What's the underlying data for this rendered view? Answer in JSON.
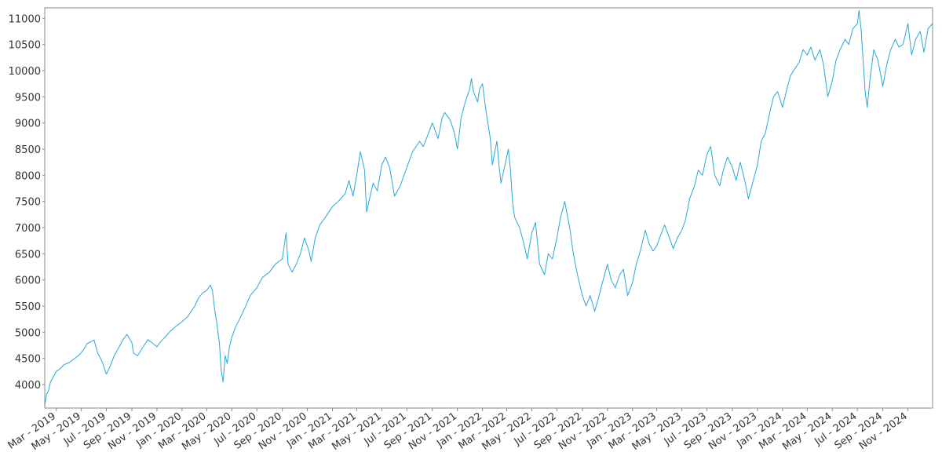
{
  "chart_data": {
    "type": "line",
    "title": "",
    "xlabel": "",
    "ylabel": "",
    "ylim": [
      3550,
      11200
    ],
    "xlim": [
      "2019-02-01",
      "2024-12-31"
    ],
    "grid": false,
    "line_color": "#29a8d9",
    "yticks": [
      4000,
      4500,
      5000,
      5500,
      6000,
      6500,
      7000,
      7500,
      8000,
      8500,
      9000,
      9500,
      10000,
      10500,
      11000
    ],
    "xticks": [
      {
        "date": "2019-03-01",
        "label": "Mar - 2019"
      },
      {
        "date": "2019-05-01",
        "label": "May - 2019"
      },
      {
        "date": "2019-07-01",
        "label": "Jul - 2019"
      },
      {
        "date": "2019-09-01",
        "label": "Sep - 2019"
      },
      {
        "date": "2019-11-01",
        "label": "Nov - 2019"
      },
      {
        "date": "2020-01-01",
        "label": "Jan - 2020"
      },
      {
        "date": "2020-03-01",
        "label": "Mar - 2020"
      },
      {
        "date": "2020-05-01",
        "label": "May - 2020"
      },
      {
        "date": "2020-07-01",
        "label": "Jul - 2020"
      },
      {
        "date": "2020-09-01",
        "label": "Sep - 2020"
      },
      {
        "date": "2020-11-01",
        "label": "Nov - 2020"
      },
      {
        "date": "2021-01-01",
        "label": "Jan - 2021"
      },
      {
        "date": "2021-03-01",
        "label": "Mar - 2021"
      },
      {
        "date": "2021-05-01",
        "label": "May - 2021"
      },
      {
        "date": "2021-07-01",
        "label": "Jul - 2021"
      },
      {
        "date": "2021-09-01",
        "label": "Sep - 2021"
      },
      {
        "date": "2021-11-01",
        "label": "Nov - 2021"
      },
      {
        "date": "2022-01-01",
        "label": "Jan - 2022"
      },
      {
        "date": "2022-03-01",
        "label": "Mar - 2022"
      },
      {
        "date": "2022-05-01",
        "label": "May - 2022"
      },
      {
        "date": "2022-07-01",
        "label": "Jul - 2022"
      },
      {
        "date": "2022-09-01",
        "label": "Sep - 2022"
      },
      {
        "date": "2022-11-01",
        "label": "Nov - 2022"
      },
      {
        "date": "2023-01-01",
        "label": "Jan - 2023"
      },
      {
        "date": "2023-03-01",
        "label": "Mar - 2023"
      },
      {
        "date": "2023-05-01",
        "label": "May - 2023"
      },
      {
        "date": "2023-07-01",
        "label": "Jul - 2023"
      },
      {
        "date": "2023-09-01",
        "label": "Sep - 2023"
      },
      {
        "date": "2023-11-01",
        "label": "Nov - 2023"
      },
      {
        "date": "2024-01-01",
        "label": "Jan - 2024"
      },
      {
        "date": "2024-03-01",
        "label": "Mar - 2024"
      },
      {
        "date": "2024-05-01",
        "label": "May - 2024"
      },
      {
        "date": "2024-07-01",
        "label": "Jul - 2024"
      },
      {
        "date": "2024-09-01",
        "label": "Sep - 2024"
      },
      {
        "date": "2024-11-01",
        "label": "Nov - 2024"
      }
    ],
    "series": [
      {
        "points": [
          [
            "2019-02-01",
            3600
          ],
          [
            "2019-02-05",
            3800
          ],
          [
            "2019-02-10",
            3880
          ],
          [
            "2019-02-15",
            4050
          ],
          [
            "2019-02-22",
            4150
          ],
          [
            "2019-03-01",
            4250
          ],
          [
            "2019-03-10",
            4300
          ],
          [
            "2019-03-20",
            4380
          ],
          [
            "2019-04-01",
            4420
          ],
          [
            "2019-04-15",
            4500
          ],
          [
            "2019-04-25",
            4560
          ],
          [
            "2019-05-05",
            4650
          ],
          [
            "2019-05-15",
            4780
          ],
          [
            "2019-05-25",
            4820
          ],
          [
            "2019-06-01",
            4850
          ],
          [
            "2019-06-10",
            4600
          ],
          [
            "2019-06-20",
            4450
          ],
          [
            "2019-07-01",
            4200
          ],
          [
            "2019-07-10",
            4350
          ],
          [
            "2019-07-20",
            4550
          ],
          [
            "2019-08-01",
            4720
          ],
          [
            "2019-08-10",
            4850
          ],
          [
            "2019-08-20",
            4960
          ],
          [
            "2019-09-01",
            4800
          ],
          [
            "2019-09-05",
            4600
          ],
          [
            "2019-09-15",
            4550
          ],
          [
            "2019-09-25",
            4680
          ],
          [
            "2019-10-01",
            4750
          ],
          [
            "2019-10-10",
            4860
          ],
          [
            "2019-10-20",
            4800
          ],
          [
            "2019-11-01",
            4720
          ],
          [
            "2019-11-10",
            4820
          ],
          [
            "2019-11-20",
            4900
          ],
          [
            "2019-12-01",
            5000
          ],
          [
            "2019-12-15",
            5100
          ],
          [
            "2020-01-01",
            5200
          ],
          [
            "2020-01-15",
            5300
          ],
          [
            "2020-02-01",
            5500
          ],
          [
            "2020-02-10",
            5650
          ],
          [
            "2020-02-20",
            5750
          ],
          [
            "2020-03-01",
            5800
          ],
          [
            "2020-03-10",
            5900
          ],
          [
            "2020-03-15",
            5800
          ],
          [
            "2020-03-20",
            5450
          ],
          [
            "2020-03-25",
            5200
          ],
          [
            "2020-04-01",
            4800
          ],
          [
            "2020-04-05",
            4300
          ],
          [
            "2020-04-10",
            4050
          ],
          [
            "2020-04-15",
            4550
          ],
          [
            "2020-04-20",
            4400
          ],
          [
            "2020-04-25",
            4700
          ],
          [
            "2020-05-01",
            4900
          ],
          [
            "2020-05-10",
            5100
          ],
          [
            "2020-05-20",
            5250
          ],
          [
            "2020-06-01",
            5450
          ],
          [
            "2020-06-15",
            5700
          ],
          [
            "2020-07-01",
            5850
          ],
          [
            "2020-07-15",
            6050
          ],
          [
            "2020-08-01",
            6150
          ],
          [
            "2020-08-15",
            6300
          ],
          [
            "2020-09-01",
            6400
          ],
          [
            "2020-09-10",
            6900
          ],
          [
            "2020-09-15",
            6300
          ],
          [
            "2020-09-25",
            6150
          ],
          [
            "2020-10-05",
            6300
          ],
          [
            "2020-10-15",
            6500
          ],
          [
            "2020-10-25",
            6800
          ],
          [
            "2020-11-05",
            6550
          ],
          [
            "2020-11-10",
            6350
          ],
          [
            "2020-11-20",
            6800
          ],
          [
            "2020-12-01",
            7050
          ],
          [
            "2020-12-15",
            7200
          ],
          [
            "2021-01-01",
            7400
          ],
          [
            "2021-01-15",
            7500
          ],
          [
            "2021-02-01",
            7650
          ],
          [
            "2021-02-10",
            7900
          ],
          [
            "2021-02-20",
            7600
          ],
          [
            "2021-03-01",
            8000
          ],
          [
            "2021-03-10",
            8450
          ],
          [
            "2021-03-20",
            8100
          ],
          [
            "2021-03-25",
            7300
          ],
          [
            "2021-04-01",
            7550
          ],
          [
            "2021-04-10",
            7850
          ],
          [
            "2021-04-20",
            7700
          ],
          [
            "2021-05-01",
            8200
          ],
          [
            "2021-05-10",
            8350
          ],
          [
            "2021-05-20",
            8150
          ],
          [
            "2021-06-01",
            7600
          ],
          [
            "2021-06-15",
            7800
          ],
          [
            "2021-07-01",
            8150
          ],
          [
            "2021-07-15",
            8450
          ],
          [
            "2021-08-01",
            8650
          ],
          [
            "2021-08-10",
            8550
          ],
          [
            "2021-08-20",
            8750
          ],
          [
            "2021-09-01",
            9000
          ],
          [
            "2021-09-15",
            8700
          ],
          [
            "2021-09-25",
            9100
          ],
          [
            "2021-10-01",
            9200
          ],
          [
            "2021-10-15",
            9050
          ],
          [
            "2021-10-25",
            8800
          ],
          [
            "2021-11-01",
            8500
          ],
          [
            "2021-11-10",
            9100
          ],
          [
            "2021-11-20",
            9400
          ],
          [
            "2021-12-01",
            9650
          ],
          [
            "2021-12-05",
            9850
          ],
          [
            "2021-12-10",
            9600
          ],
          [
            "2021-12-20",
            9400
          ],
          [
            "2021-12-25",
            9650
          ],
          [
            "2022-01-01",
            9750
          ],
          [
            "2022-01-05",
            9500
          ],
          [
            "2022-01-10",
            9200
          ],
          [
            "2022-01-20",
            8700
          ],
          [
            "2022-01-25",
            8200
          ],
          [
            "2022-02-01",
            8500
          ],
          [
            "2022-02-05",
            8650
          ],
          [
            "2022-02-10",
            8200
          ],
          [
            "2022-02-15",
            7850
          ],
          [
            "2022-02-25",
            8200
          ],
          [
            "2022-03-05",
            8500
          ],
          [
            "2022-03-10",
            8100
          ],
          [
            "2022-03-15",
            7500
          ],
          [
            "2022-03-20",
            7200
          ],
          [
            "2022-04-01",
            7000
          ],
          [
            "2022-04-10",
            6750
          ],
          [
            "2022-04-20",
            6400
          ],
          [
            "2022-05-01",
            6900
          ],
          [
            "2022-05-10",
            7100
          ],
          [
            "2022-05-20",
            6300
          ],
          [
            "2022-06-01",
            6100
          ],
          [
            "2022-06-10",
            6500
          ],
          [
            "2022-06-20",
            6400
          ],
          [
            "2022-07-01",
            6800
          ],
          [
            "2022-07-10",
            7200
          ],
          [
            "2022-07-20",
            7500
          ],
          [
            "2022-08-01",
            7000
          ],
          [
            "2022-08-10",
            6500
          ],
          [
            "2022-08-20",
            6100
          ],
          [
            "2022-09-01",
            5700
          ],
          [
            "2022-09-10",
            5500
          ],
          [
            "2022-09-20",
            5700
          ],
          [
            "2022-10-01",
            5400
          ],
          [
            "2022-10-10",
            5650
          ],
          [
            "2022-10-20",
            5950
          ],
          [
            "2022-11-01",
            6300
          ],
          [
            "2022-11-10",
            6000
          ],
          [
            "2022-11-20",
            5850
          ],
          [
            "2022-12-01",
            6100
          ],
          [
            "2022-12-10",
            6200
          ],
          [
            "2022-12-20",
            5700
          ],
          [
            "2023-01-01",
            5950
          ],
          [
            "2023-01-10",
            6300
          ],
          [
            "2023-01-20",
            6550
          ],
          [
            "2023-02-01",
            6950
          ],
          [
            "2023-02-10",
            6700
          ],
          [
            "2023-02-20",
            6550
          ],
          [
            "2023-03-01",
            6650
          ],
          [
            "2023-03-10",
            6850
          ],
          [
            "2023-03-20",
            7050
          ],
          [
            "2023-04-01",
            6800
          ],
          [
            "2023-04-10",
            6600
          ],
          [
            "2023-04-20",
            6800
          ],
          [
            "2023-05-01",
            6950
          ],
          [
            "2023-05-10",
            7150
          ],
          [
            "2023-05-20",
            7550
          ],
          [
            "2023-06-01",
            7800
          ],
          [
            "2023-06-10",
            8100
          ],
          [
            "2023-06-20",
            8000
          ],
          [
            "2023-07-01",
            8400
          ],
          [
            "2023-07-10",
            8550
          ],
          [
            "2023-07-20",
            8000
          ],
          [
            "2023-08-01",
            7800
          ],
          [
            "2023-08-10",
            8100
          ],
          [
            "2023-08-20",
            8350
          ],
          [
            "2023-09-01",
            8150
          ],
          [
            "2023-09-10",
            7900
          ],
          [
            "2023-09-20",
            8250
          ],
          [
            "2023-10-01",
            7900
          ],
          [
            "2023-10-10",
            7550
          ],
          [
            "2023-10-20",
            7850
          ],
          [
            "2023-11-01",
            8200
          ],
          [
            "2023-11-10",
            8650
          ],
          [
            "2023-11-20",
            8800
          ],
          [
            "2023-12-01",
            9200
          ],
          [
            "2023-12-10",
            9500
          ],
          [
            "2023-12-20",
            9600
          ],
          [
            "2024-01-01",
            9300
          ],
          [
            "2024-01-10",
            9600
          ],
          [
            "2024-01-20",
            9900
          ],
          [
            "2024-02-01",
            10050
          ],
          [
            "2024-02-10",
            10150
          ],
          [
            "2024-02-20",
            10400
          ],
          [
            "2024-03-01",
            10300
          ],
          [
            "2024-03-10",
            10450
          ],
          [
            "2024-03-20",
            10200
          ],
          [
            "2024-04-01",
            10400
          ],
          [
            "2024-04-10",
            10100
          ],
          [
            "2024-04-20",
            9500
          ],
          [
            "2024-05-01",
            9800
          ],
          [
            "2024-05-10",
            10200
          ],
          [
            "2024-05-20",
            10400
          ],
          [
            "2024-06-01",
            10600
          ],
          [
            "2024-06-10",
            10500
          ],
          [
            "2024-06-20",
            10800
          ],
          [
            "2024-07-01",
            10900
          ],
          [
            "2024-07-05",
            11150
          ],
          [
            "2024-07-10",
            10800
          ],
          [
            "2024-07-15",
            10200
          ],
          [
            "2024-07-20",
            9600
          ],
          [
            "2024-07-25",
            9300
          ],
          [
            "2024-08-01",
            9850
          ],
          [
            "2024-08-10",
            10400
          ],
          [
            "2024-08-20",
            10200
          ],
          [
            "2024-09-01",
            9700
          ],
          [
            "2024-09-10",
            10100
          ],
          [
            "2024-09-20",
            10400
          ],
          [
            "2024-10-01",
            10600
          ],
          [
            "2024-10-10",
            10450
          ],
          [
            "2024-10-20",
            10500
          ],
          [
            "2024-11-01",
            10900
          ],
          [
            "2024-11-10",
            10300
          ],
          [
            "2024-11-20",
            10600
          ],
          [
            "2024-12-01",
            10750
          ],
          [
            "2024-12-10",
            10350
          ],
          [
            "2024-12-20",
            10800
          ],
          [
            "2024-12-31",
            10900
          ]
        ]
      }
    ]
  }
}
